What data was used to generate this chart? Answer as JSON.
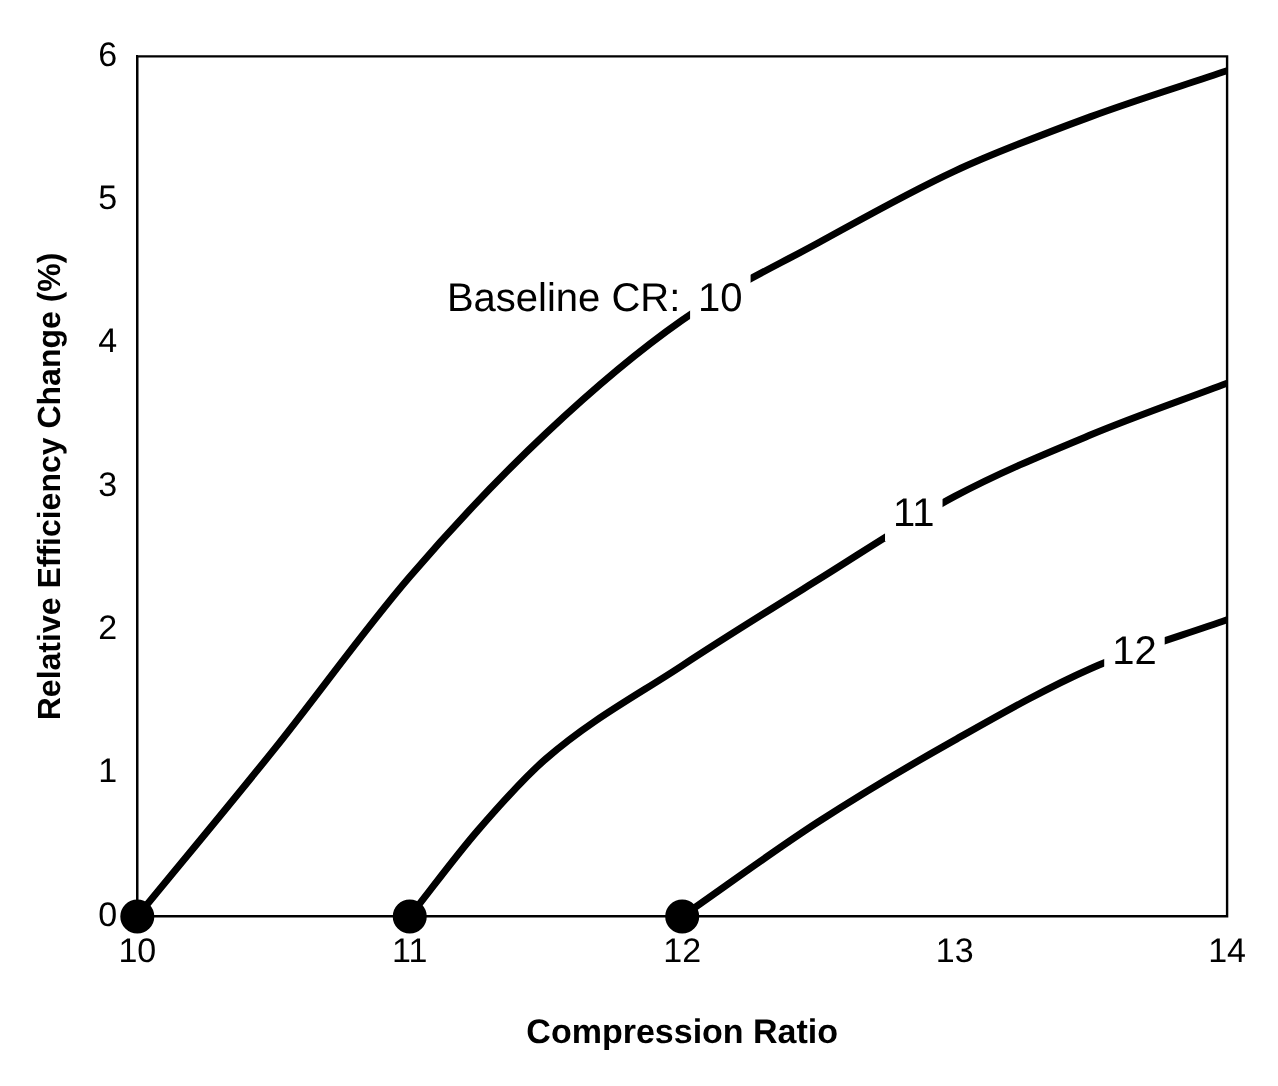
{
  "chart_data": {
    "type": "line",
    "xlabel": "Compression Ratio",
    "ylabel": "Relative Efficiency Change (%)",
    "xlim": [
      10,
      14
    ],
    "ylim": [
      0,
      6
    ],
    "xticks": [
      10,
      11,
      12,
      13,
      14
    ],
    "yticks": [
      0,
      1,
      2,
      3,
      4,
      5,
      6
    ],
    "grid": false,
    "legend": false,
    "marker": "none",
    "line_style": "solid",
    "series": [
      {
        "color": "#000000",
        "x": [
          10,
          10.5,
          11,
          11.5,
          12,
          12.5,
          13,
          13.5,
          14
        ],
        "values": [
          0,
          1.16,
          2.37,
          3.37,
          4.16,
          4.7,
          5.2,
          5.58,
          5.9
        ]
      },
      {
        "color": "#000000",
        "x": [
          11,
          11.25,
          11.5,
          12,
          12.5,
          13,
          13.5,
          14
        ],
        "values": [
          0,
          0.6,
          1.1,
          1.75,
          2.35,
          2.93,
          3.36,
          3.72
        ]
      },
      {
        "color": "#000000",
        "x": [
          12,
          12.5,
          13,
          13.5,
          14
        ],
        "values": [
          0,
          0.66,
          1.23,
          1.73,
          2.07
        ]
      },
      {
        "type": "scatter",
        "marker": "circle",
        "color": "#000000",
        "x": [
          10,
          11,
          12
        ],
        "values": [
          0,
          0,
          0
        ]
      }
    ],
    "annotations": [
      "Baseline CR:",
      {
        "text": "10",
        "x": 12.14,
        "y": 4.3
      },
      {
        "text": "11",
        "x": 12.85,
        "y": 2.8
      },
      {
        "text": "12",
        "x": 13.66,
        "y": 1.84
      }
    ]
  }
}
